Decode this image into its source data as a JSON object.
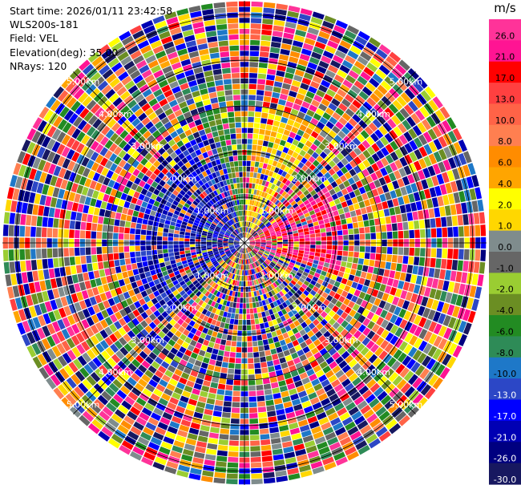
{
  "info": {
    "start_time": "Start time: 2026/01/11 23:42:58",
    "station": "WLS200s-181",
    "field": "Field: VEL",
    "elevation": "Elevation(deg): 35.00",
    "nrays": "NRays: 120"
  },
  "chart_data": {
    "type": "heatmap",
    "title": "",
    "projection": "polar",
    "field": "VEL",
    "unit": "m/s",
    "elevation_deg": 35.0,
    "n_rays": 120,
    "range_rings": [
      {
        "value": 1,
        "label": "1.00km"
      },
      {
        "value": 2,
        "label": "2.00km"
      },
      {
        "value": 3,
        "label": "3.00km"
      },
      {
        "value": 4,
        "label": "4.00km"
      },
      {
        "value": 5,
        "label": "5.00km"
      }
    ],
    "max_range": 5.3,
    "colorbar": {
      "label": "m/s",
      "bins": [
        {
          "label": "-30.0",
          "color": "#171860"
        },
        {
          "label": "-26.0",
          "color": "#000080"
        },
        {
          "label": "-21.0",
          "color": "#0000b4"
        },
        {
          "label": "-17.0",
          "color": "#0000ff"
        },
        {
          "label": "-13.0",
          "color": "#2c47c6"
        },
        {
          "label": "-10.0",
          "color": "#1e78c8"
        },
        {
          "label": "-8.0",
          "color": "#2e8b57"
        },
        {
          "label": "-6.0",
          "color": "#228b22"
        },
        {
          "label": "-4.0",
          "color": "#6b8e23"
        },
        {
          "label": "-2.0",
          "color": "#9acd32"
        },
        {
          "label": "-1.0",
          "color": "#666666"
        },
        {
          "label": "0.0",
          "color": "#7f8c8d"
        },
        {
          "label": "1.0",
          "color": "#ffd700"
        },
        {
          "label": "2.0",
          "color": "#ffff00"
        },
        {
          "label": "4.0",
          "color": "#ffa500"
        },
        {
          "label": "6.0",
          "color": "#ff8c00"
        },
        {
          "label": "8.0",
          "color": "#ff7f50"
        },
        {
          "label": "10.0",
          "color": "#ff6347"
        },
        {
          "label": "13.0",
          "color": "#ff4040"
        },
        {
          "label": "17.0",
          "color": "#ff0000"
        },
        {
          "label": "21.0",
          "color": "#ff1493"
        },
        {
          "label": "26.0",
          "color": "#ff3399"
        }
      ]
    }
  }
}
